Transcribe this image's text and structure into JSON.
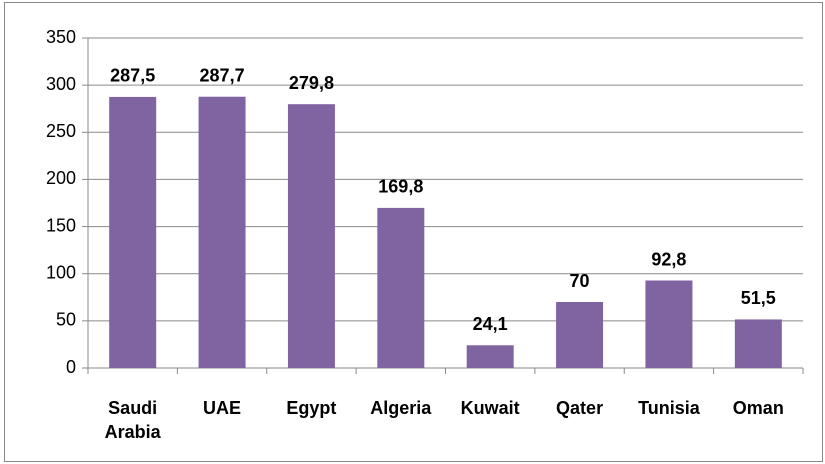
{
  "chart_data": {
    "type": "bar",
    "categories": [
      "Saudi Arabia",
      "UAE",
      "Egypt",
      "Algeria",
      "Kuwait",
      "Qater",
      "Tunisia",
      "Oman"
    ],
    "values": [
      287.5,
      287.7,
      279.8,
      169.8,
      24.1,
      70,
      92.8,
      51.5
    ],
    "value_labels": [
      "287,5",
      "287,7",
      "279,8",
      "169,8",
      "24,1",
      "70",
      "92,8",
      "51,5"
    ],
    "color": "#8064a2",
    "ylim": [
      0,
      350
    ],
    "yticks": [
      0,
      50,
      100,
      150,
      200,
      250,
      300,
      350
    ],
    "grid": true
  }
}
